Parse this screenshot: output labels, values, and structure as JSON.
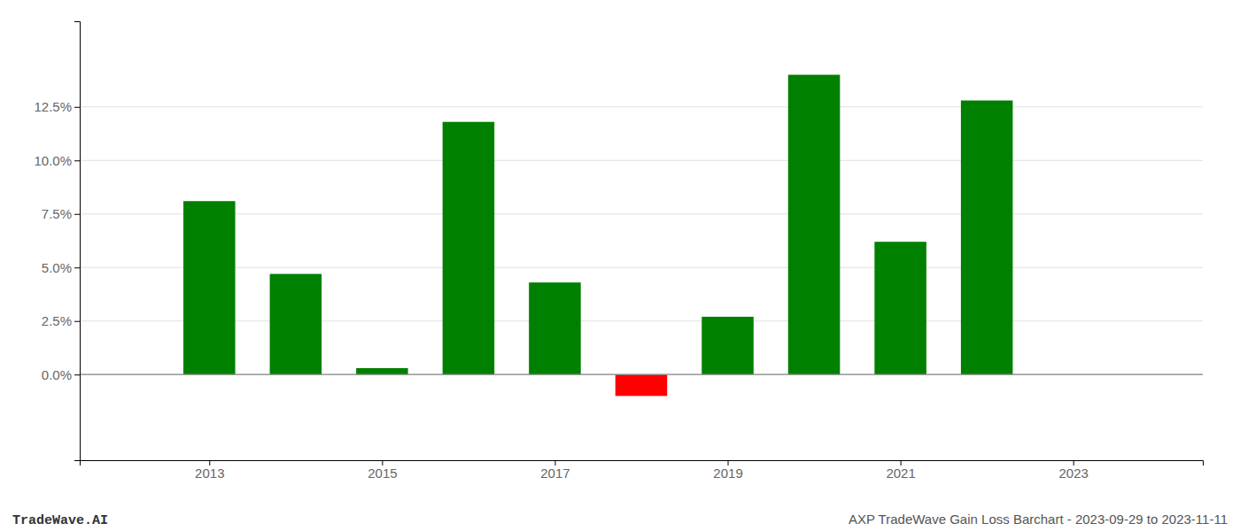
{
  "chart_data": {
    "type": "bar",
    "x": [
      2013,
      2014,
      2015,
      2016,
      2017,
      2018,
      2019,
      2020,
      2021,
      2022
    ],
    "values": [
      0.081,
      0.047,
      0.003,
      0.118,
      0.043,
      -0.01,
      0.027,
      0.14,
      0.062,
      0.128
    ],
    "colors": [
      "#008000",
      "#008000",
      "#008000",
      "#008000",
      "#008000",
      "#ff0000",
      "#008000",
      "#008000",
      "#008000",
      "#008000"
    ],
    "xlim": [
      2011.5,
      2024.5
    ],
    "xticks": [
      2013,
      2015,
      2017,
      2019,
      2021,
      2023
    ],
    "ylim": [
      -0.04,
      0.165
    ],
    "yticks": [
      {
        "value": 0.0,
        "label": "0.0%"
      },
      {
        "value": 0.025,
        "label": "2.5%"
      },
      {
        "value": 0.05,
        "label": "5.0%"
      },
      {
        "value": 0.075,
        "label": "7.5%"
      },
      {
        "value": 0.1,
        "label": "10.0%"
      },
      {
        "value": 0.125,
        "label": "12.5%"
      }
    ],
    "grid": true,
    "annotations": [
      "TradeWave.AI",
      "AXP TradeWave Gain Loss Barchart - 2023-09-29 to 2023-11-11"
    ]
  }
}
